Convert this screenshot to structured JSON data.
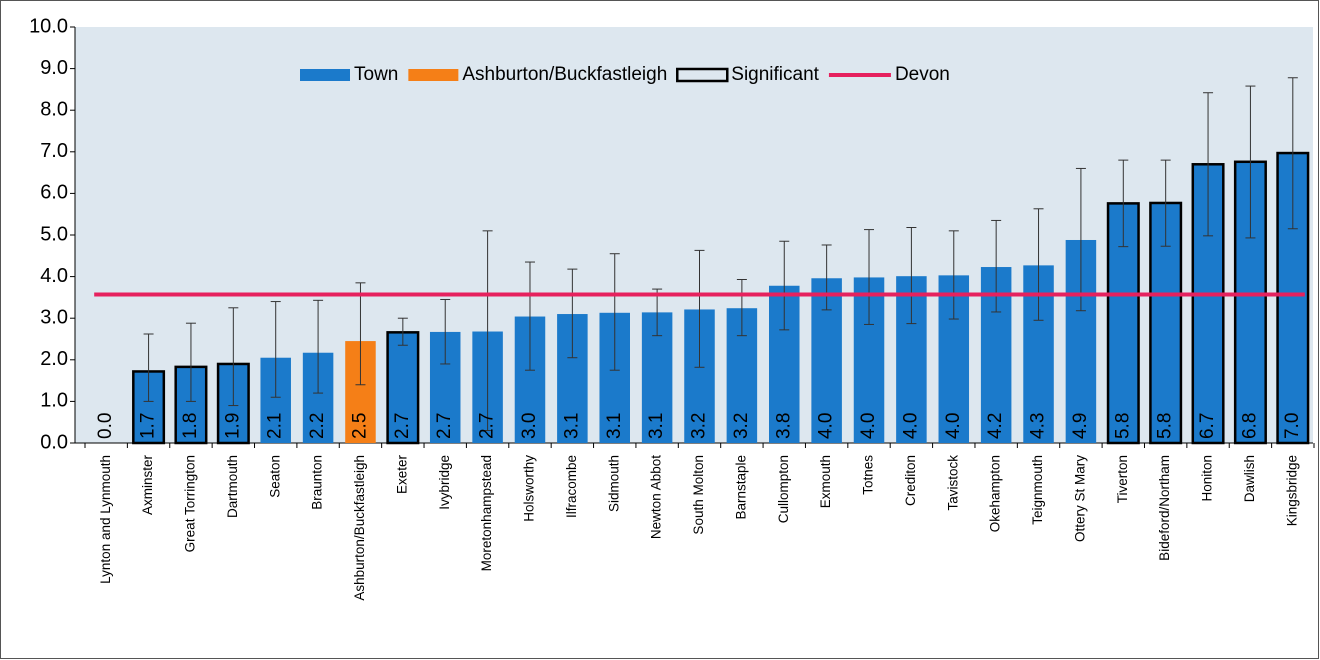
{
  "chart_data": {
    "type": "bar",
    "categories": [
      "Lynton and Lynmouth",
      "Axminster",
      "Great Torrington",
      "Dartmouth",
      "Seaton",
      "Braunton",
      "Ashburton/Buckfastleigh",
      "Exeter",
      "Ivybridge",
      "Moretonhampstead",
      "Holsworthy",
      "Ilfracombe",
      "Sidmouth",
      "Newton Abbot",
      "South Molton",
      "Barnstaple",
      "Cullompton",
      "Exmouth",
      "Totnes",
      "Crediton",
      "Tavistock",
      "Okehampton",
      "Teignmouth",
      "Ottery St Mary",
      "Tiverton",
      "Bideford/Northam",
      "Honiton",
      "Dawlish",
      "Kingsbridge"
    ],
    "values": [
      0,
      1.72,
      1.83,
      1.9,
      2.05,
      2.17,
      2.45,
      2.66,
      2.67,
      2.68,
      3.04,
      3.1,
      3.13,
      3.14,
      3.21,
      3.24,
      3.78,
      3.96,
      3.98,
      4.01,
      4.03,
      4.23,
      4.27,
      4.88,
      5.76,
      5.77,
      6.7,
      6.76,
      6.97
    ],
    "value_labels": [
      "0.0",
      "1.7",
      "1.8",
      "1.9",
      "2.1",
      "2.2",
      "2.5",
      "2.7",
      "2.7",
      "2.7",
      "3.0",
      "3.1",
      "3.1",
      "3.1",
      "3.2",
      "3.2",
      "3.8",
      "4.0",
      "4.0",
      "4.0",
      "4.0",
      "4.2",
      "4.3",
      "4.9",
      "5.8",
      "5.8",
      "6.7",
      "6.8",
      "7.0"
    ],
    "ci_lower": [
      null,
      1.0,
      1.0,
      0.9,
      1.1,
      1.2,
      1.4,
      2.35,
      1.9,
      0.3,
      1.75,
      2.05,
      1.75,
      2.58,
      1.82,
      2.58,
      2.72,
      3.2,
      2.85,
      2.87,
      2.98,
      3.15,
      2.95,
      3.18,
      4.72,
      4.73,
      4.98,
      4.93,
      5.15
    ],
    "ci_upper": [
      null,
      2.62,
      2.88,
      3.25,
      3.4,
      3.43,
      3.85,
      3.0,
      3.45,
      5.1,
      4.35,
      4.18,
      4.55,
      3.7,
      4.63,
      3.93,
      4.85,
      4.76,
      5.13,
      5.18,
      5.1,
      5.35,
      5.63,
      6.6,
      6.8,
      6.8,
      8.42,
      8.58,
      8.78
    ],
    "bar_colors": [
      "#1b7acb",
      "#1b7acb",
      "#1b7acb",
      "#1b7acb",
      "#1b7acb",
      "#1b7acb",
      "#f57f17",
      "#1b7acb",
      "#1b7acb",
      "#1b7acb",
      "#1b7acb",
      "#1b7acb",
      "#1b7acb",
      "#1b7acb",
      "#1b7acb",
      "#1b7acb",
      "#1b7acb",
      "#1b7acb",
      "#1b7acb",
      "#1b7acb",
      "#1b7acb",
      "#1b7acb",
      "#1b7acb",
      "#1b7acb",
      "#1b7acb",
      "#1b7acb",
      "#1b7acb",
      "#1b7acb",
      "#1b7acb"
    ],
    "significant": [
      false,
      true,
      true,
      true,
      false,
      false,
      false,
      true,
      false,
      false,
      false,
      false,
      false,
      false,
      false,
      false,
      false,
      false,
      false,
      false,
      false,
      false,
      false,
      false,
      true,
      true,
      true,
      true,
      true
    ],
    "legend": [
      {
        "name": "Town",
        "color": "#1b7acb"
      },
      {
        "name": "Ashburton/Buckfastleigh",
        "color": "#f57f17"
      },
      {
        "name": "Significant",
        "color": "#000000"
      },
      {
        "name": "Devon",
        "color": "#e6215e"
      }
    ],
    "reference_line": {
      "name": "Devon",
      "value": 3.57,
      "color": "#e6215e"
    },
    "ylim": [
      0,
      10
    ],
    "yticks": [
      {
        "value": 0,
        "label": "0.0"
      },
      {
        "value": 1,
        "label": "1.0"
      },
      {
        "value": 2,
        "label": "2.0"
      },
      {
        "value": 3,
        "label": "3.0"
      },
      {
        "value": 4,
        "label": "4.0"
      },
      {
        "value": 5,
        "label": "5.0"
      },
      {
        "value": 6,
        "label": "6.0"
      },
      {
        "value": 7,
        "label": "7.0"
      },
      {
        "value": 8,
        "label": "8.0"
      },
      {
        "value": 9,
        "label": "9.0"
      },
      {
        "value": 10,
        "label": "10.0"
      }
    ]
  }
}
